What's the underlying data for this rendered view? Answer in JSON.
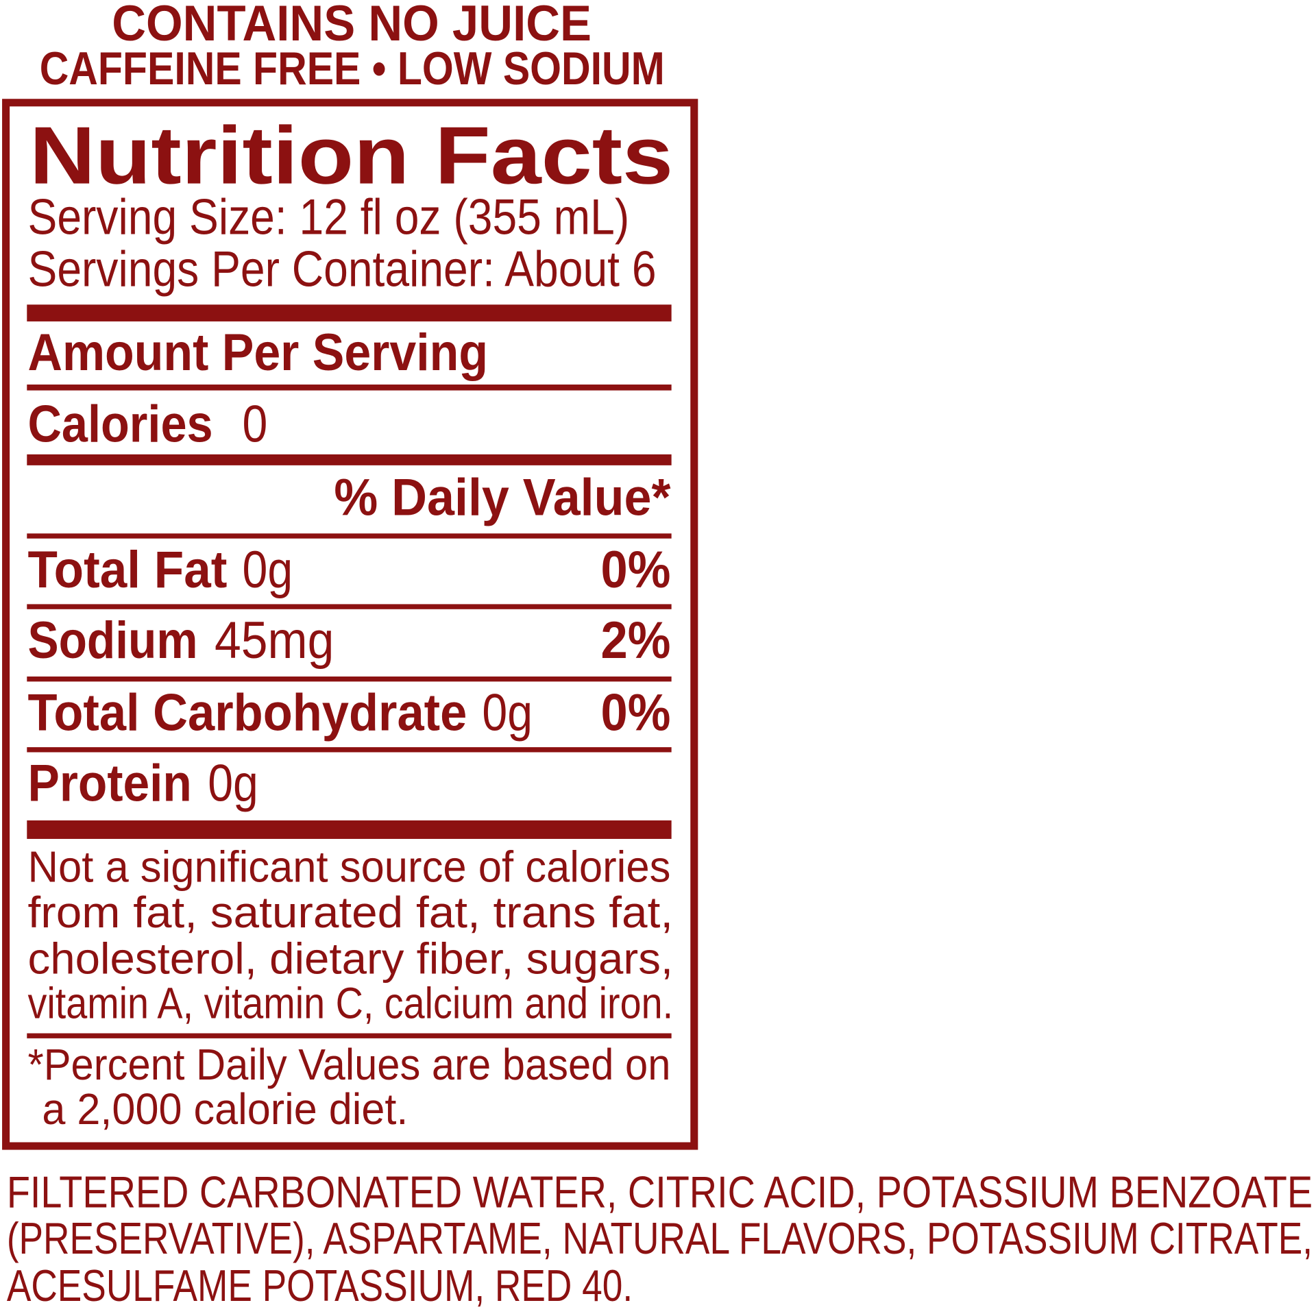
{
  "header": {
    "claims": [
      "CONTAINS NO JUICE",
      "CAFFEINE FREE • LOW SODIUM"
    ]
  },
  "nutrition_facts": {
    "title": "Nutrition Facts",
    "serving_size": "Serving Size: 12 fl oz (355 mL)",
    "servings_per_container": "Servings Per Container: About 6",
    "amount_per_serving": "Amount Per Serving",
    "calories": {
      "label": "Calories",
      "value": "0"
    },
    "daily_value_header": "% Daily Value*",
    "nutrients": [
      {
        "name": "Total Fat",
        "amount": "0g",
        "daily_value": "0%"
      },
      {
        "name": "Sodium",
        "amount": "45mg",
        "daily_value": "2%"
      },
      {
        "name": "Total Carbohydrate",
        "amount": "0g",
        "daily_value": "0%"
      },
      {
        "name": "Protein",
        "amount": "0g"
      }
    ],
    "note": [
      "Not a significant source of calories",
      "from fat, saturated fat, trans fat,",
      "cholesterol, dietary fiber, sugars,",
      "vitamin A, vitamin C, calcium and iron."
    ],
    "footnote": [
      "*Percent Daily Values are based on",
      "a 2,000 calorie diet."
    ]
  },
  "ingredients": [
    "FILTERED CARBONATED WATER, CITRIC ACID, POTASSIUM BENZOATE",
    "(PRESERVATIVE), ASPARTAME, NATURAL FLAVORS, POTASSIUM CITRATE,",
    "ACESULFAME POTASSIUM, RED 40."
  ]
}
